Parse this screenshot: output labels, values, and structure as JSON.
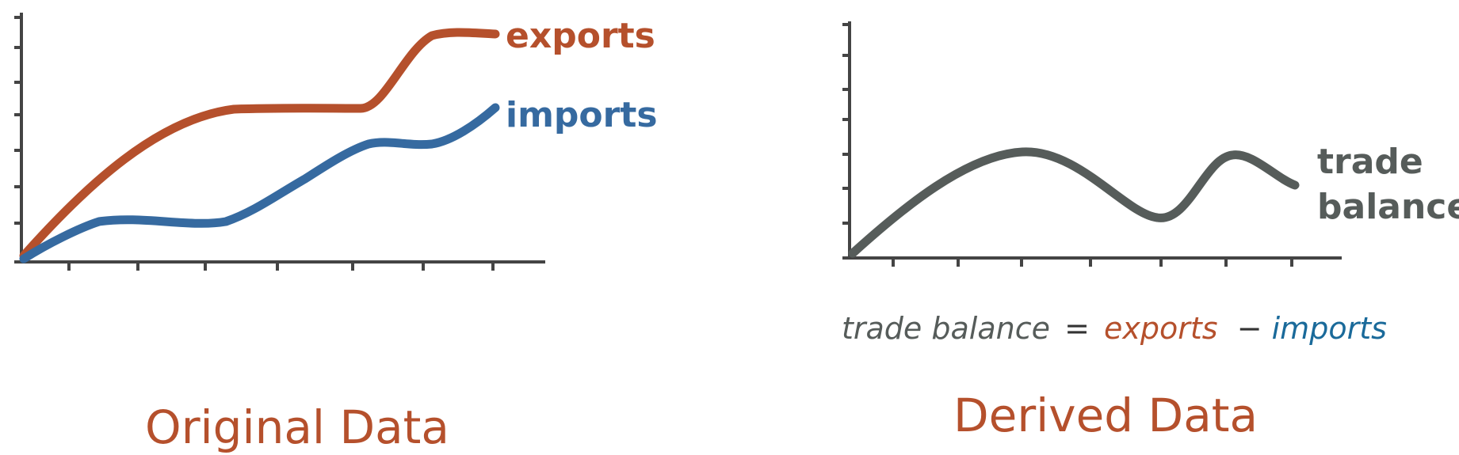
{
  "colors": {
    "exports": "#b5502c",
    "imports": "#366aa0",
    "trade_balance": "#565c5a",
    "formula_imports": "#1a6a9a",
    "caption": "#b5502c",
    "axis": "#444444"
  },
  "original": {
    "caption": "Original Data",
    "series": [
      {
        "name": "exports",
        "label": "exports"
      },
      {
        "name": "imports",
        "label": "imports"
      }
    ]
  },
  "derived": {
    "caption": "Derived Data",
    "series_label_line1": "trade",
    "series_label_line2": "balance",
    "formula": {
      "lhs": "trade balance",
      "equals": "=",
      "term1": "exports",
      "minus": "−",
      "term2": "imports"
    }
  }
}
